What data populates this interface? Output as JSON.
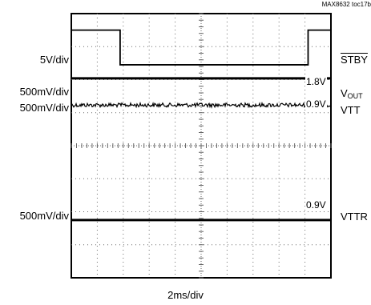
{
  "figure_id": "MAX8632 toc17b",
  "x_axis_label": "2ms/div",
  "colors": {
    "trace": "#000000",
    "grid": "#666666",
    "background": "#ffffff"
  },
  "chart_data": {
    "type": "line",
    "xlim": [
      0,
      10
    ],
    "ylim": [
      0,
      8
    ],
    "grid": true,
    "series": [
      {
        "name": "STBY",
        "scale_label": "5V/div",
        "style": "clean",
        "points": [
          [
            0,
            7.5
          ],
          [
            1.88,
            7.5
          ],
          [
            1.88,
            6.45
          ],
          [
            9.12,
            6.45
          ],
          [
            9.12,
            7.5
          ],
          [
            10,
            7.5
          ]
        ]
      },
      {
        "name": "VOUT",
        "scale_label": "500mV/div",
        "style": "bold",
        "level_label": "1.8V",
        "points": [
          [
            0,
            6.04
          ],
          [
            10,
            6.04
          ]
        ]
      },
      {
        "name": "VTT",
        "scale_label": "500mV/div",
        "style": "noisy",
        "level_label": "0.9V",
        "points": [
          [
            0,
            5.23
          ],
          [
            10,
            5.23
          ]
        ]
      },
      {
        "name": "VTTR",
        "scale_label": "500mV/div",
        "style": "bold",
        "level_label": "0.9V",
        "points": [
          [
            0,
            1.75
          ],
          [
            10,
            1.75
          ]
        ]
      }
    ]
  }
}
